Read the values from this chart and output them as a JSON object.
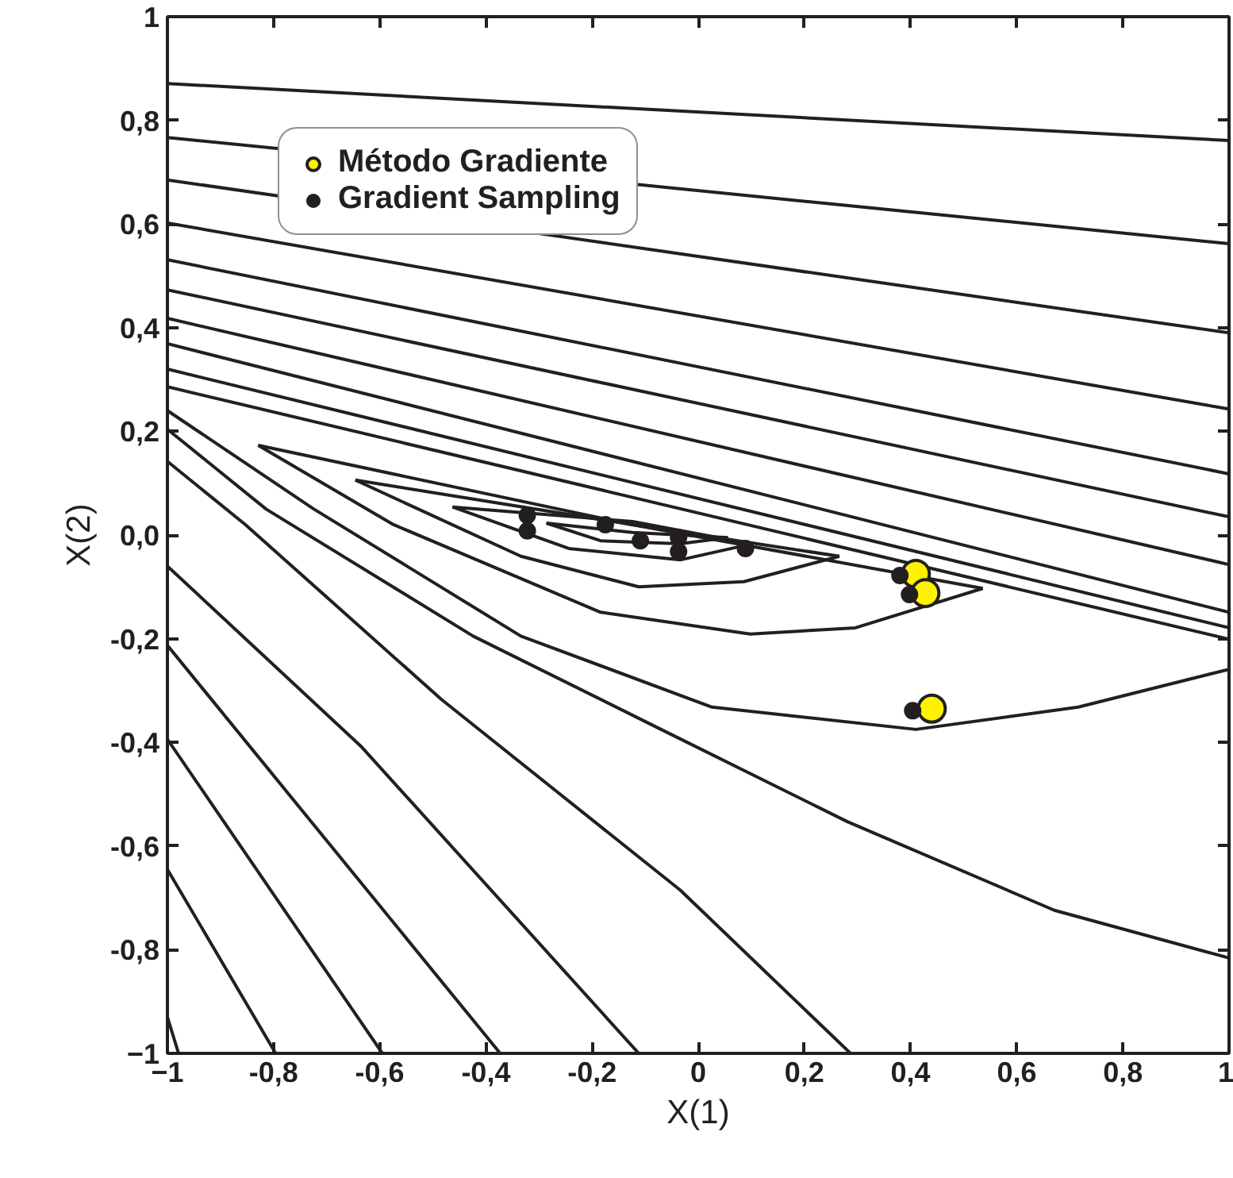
{
  "chart_data": {
    "type": "line",
    "xlabel": "X(1)",
    "ylabel": "X(2)",
    "xlim": [
      -1,
      1
    ],
    "ylim": [
      -1,
      1
    ],
    "xticks": [
      -1,
      {
        "value": -0.8,
        "label": "-0,8"
      },
      {
        "value": -0.6,
        "label": "-0,6"
      },
      {
        "value": -0.4,
        "label": "-0,4"
      },
      {
        "value": -0.2,
        "label": "-0,2"
      },
      0,
      {
        "value": 0.2,
        "label": "0,2"
      },
      {
        "value": 0.4,
        "label": "0,4"
      },
      {
        "value": 0.6,
        "label": "0,6"
      },
      {
        "value": 0.8,
        "label": "0,8"
      },
      1
    ],
    "yticks": [
      -1,
      {
        "value": -0.8,
        "label": "-0,8"
      },
      {
        "value": -0.6,
        "label": "-0,6"
      },
      {
        "value": -0.4,
        "label": "-0,4"
      },
      {
        "value": -0.2,
        "label": "-0,2"
      },
      {
        "value": 0,
        "label": "0,0"
      },
      {
        "value": 0.2,
        "label": "0,2"
      },
      {
        "value": 0.4,
        "label": "0,4"
      },
      {
        "value": 0.6,
        "label": "0,6"
      },
      {
        "value": 0.8,
        "label": "0,8"
      },
      1
    ],
    "grid": false,
    "legend": "top left",
    "line_style": "solid",
    "series": [
      {
        "type": "line",
        "color": "#231f20",
        "x": [
          -1,
          1
        ],
        "values": [
          0.871,
          0.761
        ]
      },
      {
        "type": "line",
        "color": "#231f20",
        "x": [
          -1,
          1
        ],
        "values": [
          0.767,
          0.562
        ]
      },
      {
        "type": "line",
        "color": "#231f20",
        "x": [
          -1,
          1
        ],
        "values": [
          0.685,
          0.39
        ]
      },
      {
        "type": "line",
        "color": "#231f20",
        "x": [
          -1,
          1
        ],
        "values": [
          0.602,
          0.243
        ]
      },
      {
        "type": "line",
        "color": "#231f20",
        "x": [
          -1,
          1
        ],
        "values": [
          0.531,
          0.118
        ]
      },
      {
        "type": "line",
        "color": "#231f20",
        "x": [
          -1,
          1
        ],
        "values": [
          0.473,
          0.035
        ]
      },
      {
        "type": "line",
        "color": "#231f20",
        "x": [
          -1,
          1
        ],
        "values": [
          0.418,
          -0.057
        ]
      },
      {
        "type": "line",
        "color": "#231f20",
        "x": [
          -1,
          1
        ],
        "values": [
          0.369,
          -0.149
        ]
      },
      {
        "type": "line",
        "color": "#231f20",
        "x": [
          -1,
          1
        ],
        "values": [
          0.32,
          -0.179
        ]
      },
      {
        "type": "line",
        "color": "#231f20",
        "x": [
          -1,
          1
        ],
        "values": [
          0.286,
          -0.201
        ]
      },
      {
        "color": "#231f20",
        "x": [
          -0.286,
          -0.124,
          0.056
        ],
        "values": [
          0.023,
          0.005,
          -0.005
        ]
      },
      {
        "color": "#231f20",
        "x": [
          -0.286,
          -0.184,
          -0.034,
          0.056
        ],
        "values": [
          0.023,
          -0.011,
          -0.017,
          -0.005
        ]
      },
      {
        "color": "#231f20",
        "x": [
          -0.463,
          -0.124,
          0.101
        ],
        "values": [
          0.054,
          0.026,
          -0.017
        ]
      },
      {
        "color": "#231f20",
        "x": [
          -0.463,
          -0.244,
          -0.034,
          0.101
        ],
        "values": [
          0.054,
          -0.026,
          -0.048,
          -0.017
        ]
      },
      {
        "color": "#231f20",
        "x": [
          -0.646,
          -0.124,
          0.266
        ],
        "values": [
          0.106,
          0.02,
          -0.041
        ]
      },
      {
        "color": "#231f20",
        "x": [
          -0.646,
          -0.334,
          -0.112,
          0.086,
          0.266
        ],
        "values": [
          0.106,
          -0.041,
          -0.1,
          -0.09,
          -0.041
        ]
      },
      {
        "color": "#231f20",
        "x": [
          -0.829,
          -0.124,
          0.536
        ],
        "values": [
          0.173,
          0.02,
          -0.103
        ]
      },
      {
        "color": "#231f20",
        "x": [
          -0.829,
          -0.574,
          -0.184,
          0.098,
          0.296,
          0.536
        ],
        "values": [
          0.173,
          0.02,
          -0.149,
          -0.191,
          -0.179,
          -0.103
        ]
      },
      {
        "type": "line",
        "color": "#231f20",
        "x": [
          -1,
          -0.724,
          -0.334,
          0.026,
          0.41,
          0.716,
          1
        ],
        "values": [
          0.24,
          0.05,
          -0.195,
          -0.332,
          -0.375,
          -0.332,
          -0.259
        ]
      },
      {
        "type": "line",
        "color": "#231f20",
        "x": [
          -1,
          -0.814,
          -0.424,
          -0.064,
          0.281,
          0.671,
          1
        ],
        "values": [
          0.204,
          0.05,
          -0.195,
          -0.378,
          -0.553,
          -0.724,
          -0.816
        ]
      },
      {
        "type": "line",
        "color": "#231f20",
        "x": [
          -1,
          -0.853,
          -0.484,
          -0.034,
          0.287
        ],
        "values": [
          0.142,
          0.02,
          -0.317,
          -0.685,
          -1
        ]
      },
      {
        "type": "line",
        "color": "#231f20",
        "x": [
          -1,
          -0.634,
          -0.112
        ],
        "values": [
          -0.06,
          -0.409,
          -1
        ]
      },
      {
        "type": "line",
        "color": "#231f20",
        "x": [
          -1,
          -0.373
        ],
        "values": [
          -0.213,
          -1
        ]
      },
      {
        "type": "line",
        "color": "#231f20",
        "x": [
          -1,
          -0.595
        ],
        "values": [
          -0.394,
          -1
        ]
      },
      {
        "type": "line",
        "color": "#231f20",
        "x": [
          -1,
          -0.796
        ],
        "values": [
          -0.645,
          -1
        ]
      },
      {
        "type": "line",
        "color": "#231f20",
        "x": [
          -1,
          -0.979
        ],
        "values": [
          -0.93,
          -1
        ]
      },
      {
        "type": "scatter",
        "name": "Método Gradiente",
        "color": "#fff200",
        "marker": "circle",
        "x": [
          0.41,
          0.428,
          0.44
        ],
        "values": [
          -0.075,
          -0.112,
          -0.335
        ]
      },
      {
        "type": "scatter",
        "name": "Gradient Sampling",
        "color": "#231f20",
        "marker": "circle",
        "x": [
          -0.322,
          -0.322,
          -0.175,
          -0.109,
          -0.037,
          -0.037,
          0.089,
          0.38,
          0.398,
          0.404
        ],
        "values": [
          0.038,
          0.008,
          0.02,
          -0.011,
          -0.005,
          -0.032,
          -0.026,
          -0.078,
          -0.115,
          -0.339
        ]
      }
    ]
  }
}
